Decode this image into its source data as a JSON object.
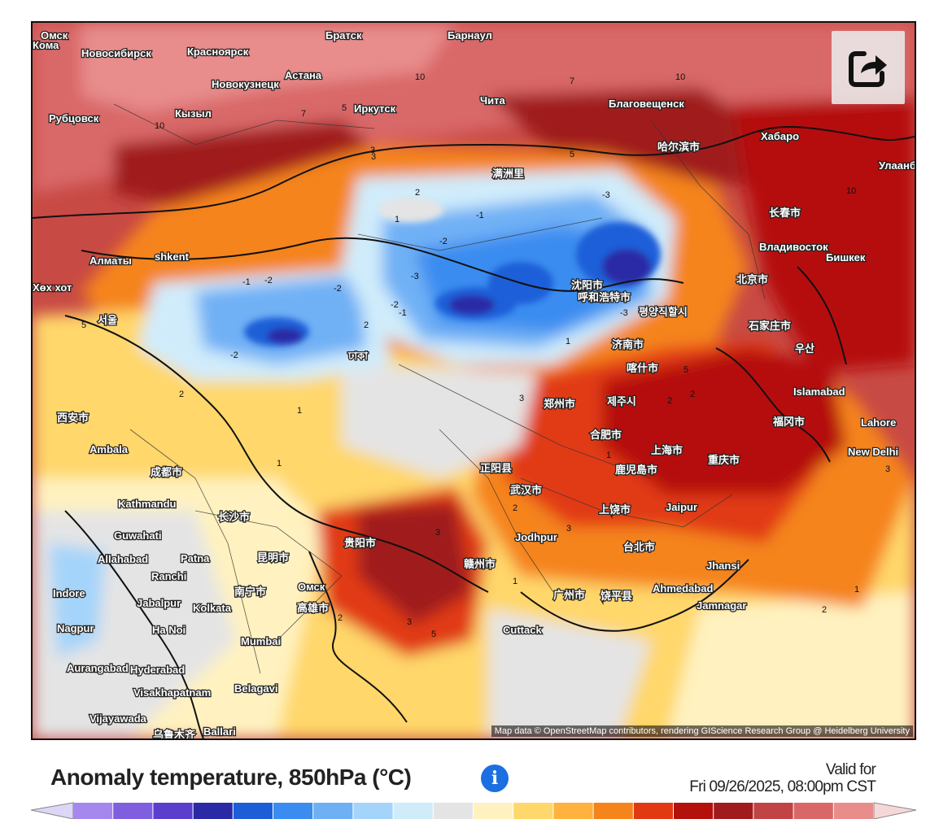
{
  "legend": {
    "title": "Anomaly temperature, 850hPa (°C)",
    "valid_for_label": "Valid for",
    "valid_time": "Fri 09/26/2025, 08:00pm CST",
    "info_icon": "info-icon",
    "colors": [
      "#ddd6f6",
      "#a588ee",
      "#7f5fe0",
      "#5a3fce",
      "#2a2aa6",
      "#1d5ed8",
      "#3a8cf0",
      "#6fb0f5",
      "#a4d4fa",
      "#d0ecfb",
      "#e4e4e4",
      "#fff2c0",
      "#ffd76a",
      "#ffb23e",
      "#f5841c",
      "#e13a12",
      "#b5110c",
      "#a01c1c",
      "#c24343",
      "#d96767",
      "#e88c8c",
      "#f6d7d7"
    ]
  },
  "share_button": {
    "icon": "share-arrow-icon"
  },
  "attribution": "Map data © OpenStreetMap contributors, rendering GIScience Research Group @ Heidelberg University",
  "places": [
    "Омск",
    "Новосибирск",
    "Красноярск",
    "Братск",
    "Барнаул",
    "Новокузнецк",
    "Астана",
    "Рубцовск",
    "Кызыл",
    "Иркутск",
    "Чита",
    "Благовещенск",
    "Хабаро",
    "Улаанбаатар",
    "满洲里",
    "哈尔滨市",
    "长春市",
    "Владивосток",
    "Бишкек",
    "Алматы",
    "shkent",
    "Хөх хот",
    "呼和浩特市",
    "沈阳市",
    "北京市",
    "평양직할시",
    "石家庄市",
    "济南市",
    "喀什市",
    "서울",
    "우산",
    "Islamabad",
    "西安市",
    "郑州市",
    "제주시",
    "福冈市",
    "Lahore",
    "Ambala",
    "成都市",
    "正阳县",
    "合肥市",
    "上海市",
    "重庆市",
    "武汉市",
    "鹿児島市",
    "New Delhi",
    "Kathmandu",
    "长沙市",
    "上饶市",
    "Jaipur",
    "Guwahati",
    "贵阳市",
    "Jodhpur",
    "Allahabad",
    "Patna",
    "昆明市",
    "赣州市",
    "台北市",
    "Jhansi",
    "Ranchi",
    "南宁市",
    "广州市",
    "饶平县",
    "Ahmedabad",
    "Indore",
    "Jabalpur",
    "Kolkata",
    "高雄市",
    "Jamnagar",
    "Nagpur",
    "Ha Noi",
    "Cuttack",
    "Mumbai",
    "Aurangabad",
    "Hyderabad",
    "Visakhapatnam",
    "Belagavi",
    "Vijayawada",
    "Ballari",
    "乌鲁木齐",
    "ঢাকা",
    "Омск",
    "Кома"
  ],
  "contour_values": [
    "10",
    "10",
    "7",
    "10",
    "7",
    "10",
    "5",
    "3",
    "2",
    "1",
    "-1",
    "-2",
    "-3",
    "-2",
    "-1",
    "-2",
    "-3",
    "-2",
    "2",
    "3",
    "5",
    "-1",
    "-2",
    "-3",
    "1",
    "2",
    "3",
    "5",
    "2",
    "1",
    "2",
    "3",
    "5",
    "1",
    "2",
    "3",
    "1",
    "2",
    "3",
    "5",
    "2",
    "1",
    "3",
    "2",
    "1"
  ]
}
